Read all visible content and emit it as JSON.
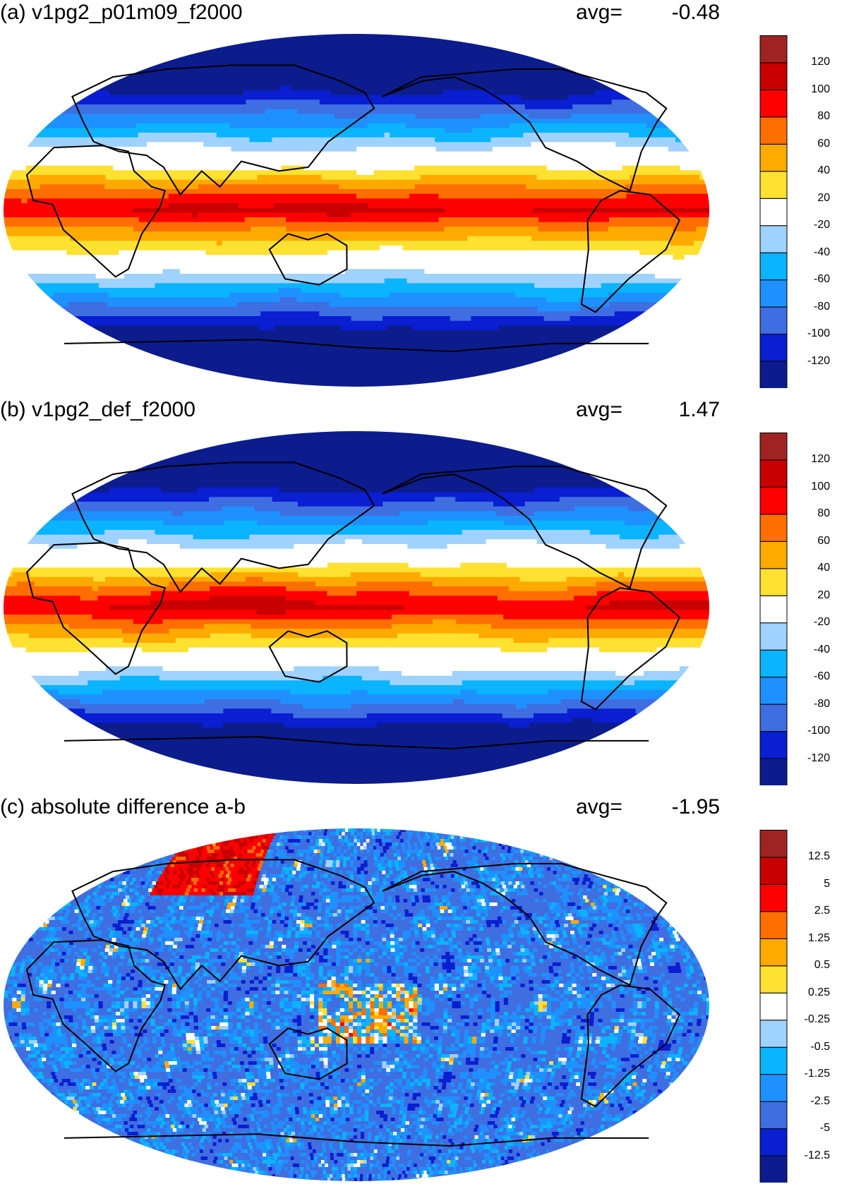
{
  "panels": [
    {
      "id": "a",
      "title": "(a) v1pg2_p01m09_f2000",
      "avg_label": "avg=",
      "avg_value": "-0.48",
      "field": "a",
      "colorbar": {
        "colors": [
          "#0c1c8c",
          "#0a1ed2",
          "#3f6ee0",
          "#1e90ff",
          "#0ab4ff",
          "#a0d2ff",
          "#ffffff",
          "#ffe132",
          "#ffaa00",
          "#ff6e00",
          "#ff0000",
          "#c80000",
          "#a02323"
        ],
        "labels": [
          "-120",
          "-100",
          "-80",
          "-60",
          "-40",
          "-20",
          "20",
          "40",
          "60",
          "80",
          "100",
          "120"
        ]
      }
    },
    {
      "id": "b",
      "title": "(b) v1pg2_def_f2000",
      "avg_label": "avg=",
      "avg_value": "1.47",
      "field": "b",
      "colorbar": {
        "colors": [
          "#0c1c8c",
          "#0a1ed2",
          "#3f6ee0",
          "#1e90ff",
          "#0ab4ff",
          "#a0d2ff",
          "#ffffff",
          "#ffe132",
          "#ffaa00",
          "#ff6e00",
          "#ff0000",
          "#c80000",
          "#a02323"
        ],
        "labels": [
          "-120",
          "-100",
          "-80",
          "-60",
          "-40",
          "-20",
          "20",
          "40",
          "60",
          "80",
          "100",
          "120"
        ]
      }
    },
    {
      "id": "c",
      "title": "(c) absolute difference a-b",
      "avg_label": "avg=",
      "avg_value": "-1.95",
      "field": "c",
      "colorbar": {
        "colors": [
          "#0c1c8c",
          "#0a1ed2",
          "#3f6ee0",
          "#1e90ff",
          "#0ab4ff",
          "#a0d2ff",
          "#ffffff",
          "#ffe132",
          "#ffaa00",
          "#ff6e00",
          "#ff0000",
          "#c80000",
          "#a02323"
        ],
        "labels": [
          "-12.5",
          "-5",
          "-2.5",
          "-1.25",
          "-0.5",
          "-0.25",
          "0.25",
          "0.5",
          "1.25",
          "2.5",
          "5",
          "12.5"
        ]
      }
    }
  ],
  "projection": "Robinson",
  "map_style": {
    "coastline_color": "#000000"
  }
}
